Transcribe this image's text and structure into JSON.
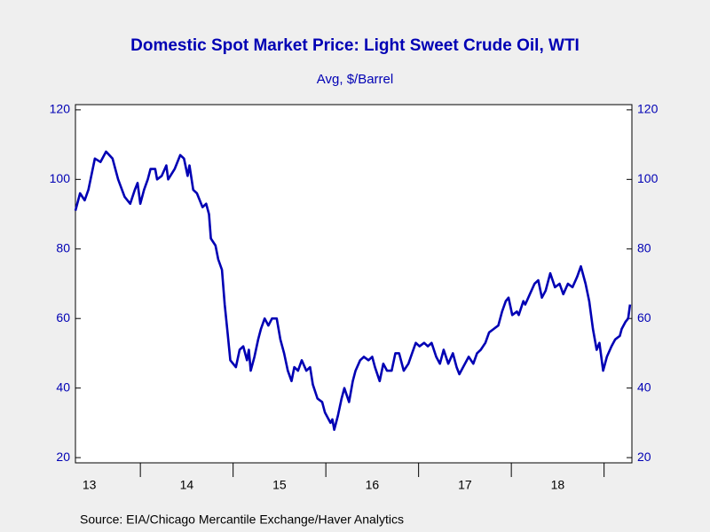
{
  "chart_data": {
    "type": "line",
    "title": "Domestic Spot Market Price: Light Sweet Crude Oil, WTI",
    "subtitle": "Avg, $/Barrel",
    "source": "Source:  EIA/Chicago Mercantile Exchange/Haver Analytics",
    "xlim": [
      13.3,
      19.3
    ],
    "xticks": [
      {
        "value": 13.45,
        "label": "13"
      },
      {
        "value": 14.5,
        "label": "14"
      },
      {
        "value": 15.5,
        "label": "15"
      },
      {
        "value": 16.5,
        "label": "16"
      },
      {
        "value": 17.5,
        "label": "17"
      },
      {
        "value": 18.5,
        "label": "18"
      }
    ],
    "xtick_marks": [
      14,
      15,
      16,
      17,
      18,
      19
    ],
    "ylim": [
      18.5,
      121.5
    ],
    "yticks": [
      20,
      40,
      60,
      80,
      100,
      120
    ],
    "y2lim": [
      18.5,
      121.5
    ],
    "y2ticks": [
      20,
      40,
      60,
      80,
      100,
      120
    ],
    "grid": false,
    "series": [
      {
        "name": "WTI",
        "color": "#0000b4",
        "x": [
          13.3,
          13.35,
          13.4,
          13.44,
          13.51,
          13.57,
          13.63,
          13.7,
          13.76,
          13.83,
          13.89,
          13.94,
          13.97,
          14.0,
          14.04,
          14.08,
          14.11,
          14.16,
          14.18,
          14.23,
          14.28,
          14.3,
          14.37,
          14.43,
          14.47,
          14.51,
          14.53,
          14.57,
          14.61,
          14.67,
          14.71,
          14.74,
          14.76,
          14.81,
          14.84,
          14.88,
          14.91,
          14.94,
          14.97,
          15.03,
          15.07,
          15.11,
          15.15,
          15.17,
          15.19,
          15.23,
          15.27,
          15.3,
          15.34,
          15.38,
          15.42,
          15.47,
          15.51,
          15.55,
          15.59,
          15.63,
          15.66,
          15.7,
          15.74,
          15.79,
          15.83,
          15.86,
          15.91,
          15.96,
          15.99,
          16.05,
          16.07,
          16.09,
          16.13,
          16.17,
          16.2,
          16.25,
          16.29,
          16.32,
          16.37,
          16.41,
          16.46,
          16.5,
          16.53,
          16.58,
          16.62,
          16.66,
          16.71,
          16.75,
          16.79,
          16.84,
          16.89,
          16.93,
          16.97,
          17.01,
          17.06,
          17.1,
          17.14,
          17.19,
          17.23,
          17.27,
          17.32,
          17.37,
          17.41,
          17.44,
          17.48,
          17.54,
          17.59,
          17.63,
          17.67,
          17.72,
          17.76,
          17.81,
          17.86,
          17.9,
          17.94,
          17.97,
          18.01,
          18.06,
          18.08,
          18.13,
          18.15,
          18.2,
          18.25,
          18.29,
          18.33,
          18.37,
          18.42,
          18.47,
          18.52,
          18.56,
          18.61,
          18.66,
          18.71,
          18.75,
          18.8,
          18.84,
          18.88,
          18.92,
          18.95,
          18.99,
          19.03,
          19.08,
          19.12,
          19.17,
          19.19,
          19.23,
          19.26,
          19.28
        ],
        "values": [
          91,
          96,
          94,
          97,
          106,
          105,
          108,
          106,
          100,
          95,
          93,
          97,
          99,
          93,
          97,
          100,
          103,
          103,
          100,
          101,
          104,
          100,
          103,
          107,
          106,
          101,
          104,
          97,
          96,
          92,
          93,
          90,
          83,
          81,
          77,
          74,
          64,
          56,
          48,
          46,
          51,
          52,
          48,
          51,
          45,
          49,
          54,
          57,
          60,
          58,
          60,
          60,
          54,
          50,
          45,
          42,
          46,
          45,
          48,
          45,
          46,
          41,
          37,
          36,
          33,
          30,
          31,
          28,
          32,
          37,
          40,
          36,
          42,
          45,
          48,
          49,
          48,
          49,
          46,
          42,
          47,
          45,
          45,
          50,
          50,
          45,
          47,
          50,
          53,
          52,
          53,
          52,
          53,
          49,
          47,
          51,
          47,
          50,
          46,
          44,
          46,
          49,
          47,
          50,
          51,
          53,
          56,
          57,
          58,
          62,
          65,
          66,
          61,
          62,
          61,
          65,
          64,
          67,
          70,
          71,
          66,
          68,
          73,
          69,
          70,
          67,
          70,
          69,
          72,
          75,
          70,
          65,
          57,
          51,
          53,
          45,
          49,
          52,
          54,
          55,
          57,
          59,
          60,
          64
        ]
      }
    ]
  }
}
